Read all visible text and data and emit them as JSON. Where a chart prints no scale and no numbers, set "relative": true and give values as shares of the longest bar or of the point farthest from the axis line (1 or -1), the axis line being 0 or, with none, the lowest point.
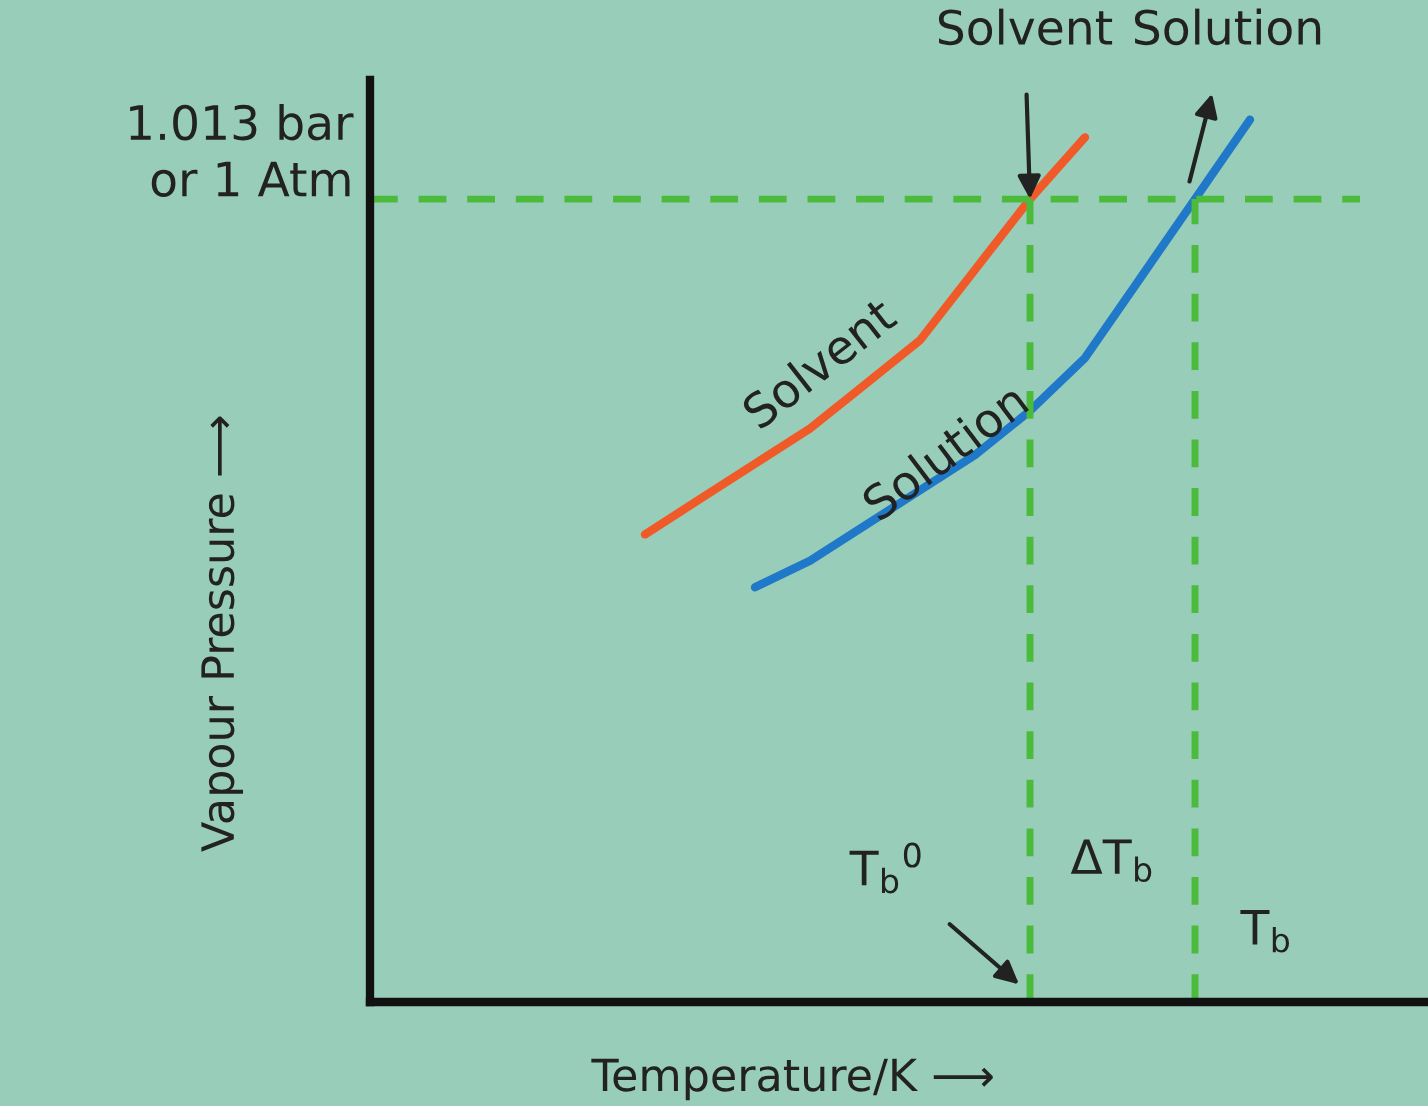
{
  "chart_data": {
    "type": "line",
    "relative": true,
    "xlabel": "Temperature/K ⟶",
    "ylabel": "Vapour Pressure ⟶",
    "categories": [
      null,
      null,
      null,
      null,
      null,
      null,
      null,
      null,
      null,
      null,
      null,
      null,
      null,
      null,
      null,
      null,
      null,
      null,
      null,
      null
    ],
    "series": [
      {
        "name": "Solvent",
        "color": "#f05a28",
        "values": [
          null,
          null,
          null,
          null,
          null,
          0.53,
          0.57,
          0.61,
          0.65,
          0.7,
          0.75,
          0.83,
          0.91,
          0.98,
          null,
          null,
          null,
          null,
          null,
          null
        ]
      },
      {
        "name": "Solution",
        "color": "#1f78c8",
        "values": [
          null,
          null,
          null,
          null,
          null,
          null,
          null,
          0.47,
          0.5,
          0.54,
          0.58,
          0.62,
          0.67,
          0.73,
          0.82,
          0.91,
          1.0,
          null,
          null,
          null
        ]
      }
    ],
    "ref_lines": [
      {
        "axis": "y",
        "value": 0.91,
        "label": "1.013 bar\nor 1 Atm",
        "color": "#4cbb3c",
        "line_style": "dashed"
      }
    ],
    "annotations": [
      "Solvent",
      "Solution",
      "T$_{b}$$^{0}$",
      "ΔT$_{b}$",
      "T$_{b}$"
    ],
    "legend": false,
    "marker": "none",
    "line_style": "solid"
  }
}
